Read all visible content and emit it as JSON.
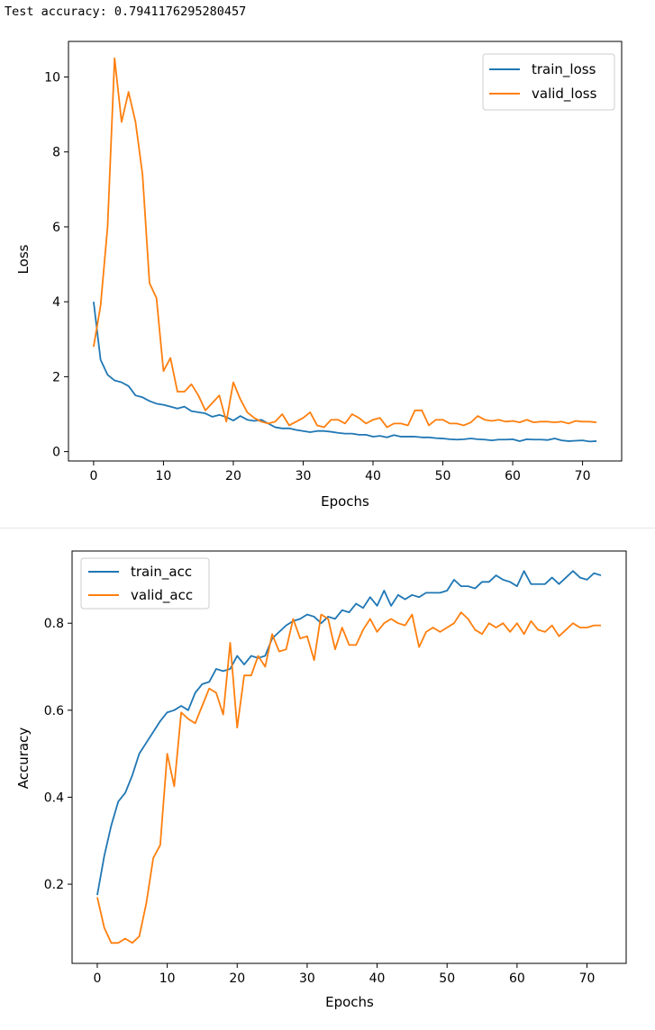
{
  "output": {
    "test_accuracy_line": "Test accuracy: 0.7941176295280457"
  },
  "colors": {
    "train": "#1f77b4",
    "valid": "#ff7f0e",
    "axis": "#000000"
  },
  "chart_data": [
    {
      "type": "line",
      "xlabel": "Epochs",
      "ylabel": "Loss",
      "xlim": [
        -3.6,
        75.6
      ],
      "ylim": [
        -0.25,
        10.95
      ],
      "xticks": [
        0,
        10,
        20,
        30,
        40,
        50,
        60,
        70
      ],
      "yticks": [
        0,
        2,
        4,
        6,
        8,
        10
      ],
      "legend": "top-right",
      "x": [
        0,
        1,
        2,
        3,
        4,
        5,
        6,
        7,
        8,
        9,
        10,
        11,
        12,
        13,
        14,
        15,
        16,
        17,
        18,
        19,
        20,
        21,
        22,
        23,
        24,
        25,
        26,
        27,
        28,
        29,
        30,
        31,
        32,
        33,
        34,
        35,
        36,
        37,
        38,
        39,
        40,
        41,
        42,
        43,
        44,
        45,
        46,
        47,
        48,
        49,
        50,
        51,
        52,
        53,
        54,
        55,
        56,
        57,
        58,
        59,
        60,
        61,
        62,
        63,
        64,
        65,
        66,
        67,
        68,
        69,
        70,
        71,
        72
      ],
      "series": [
        {
          "name": "train_loss",
          "values": [
            4.0,
            2.45,
            2.05,
            1.9,
            1.85,
            1.75,
            1.5,
            1.45,
            1.35,
            1.28,
            1.25,
            1.2,
            1.15,
            1.2,
            1.08,
            1.05,
            1.02,
            0.93,
            0.98,
            0.92,
            0.83,
            0.95,
            0.85,
            0.82,
            0.85,
            0.75,
            0.65,
            0.62,
            0.62,
            0.58,
            0.55,
            0.52,
            0.55,
            0.55,
            0.53,
            0.5,
            0.48,
            0.48,
            0.45,
            0.45,
            0.4,
            0.42,
            0.38,
            0.44,
            0.4,
            0.4,
            0.4,
            0.38,
            0.38,
            0.36,
            0.35,
            0.33,
            0.32,
            0.33,
            0.35,
            0.33,
            0.32,
            0.3,
            0.32,
            0.32,
            0.33,
            0.28,
            0.33,
            0.32,
            0.32,
            0.31,
            0.35,
            0.3,
            0.28,
            0.29,
            0.3,
            0.27,
            0.28
          ]
        },
        {
          "name": "valid_loss",
          "values": [
            2.8,
            3.9,
            6.0,
            10.5,
            8.8,
            9.6,
            8.8,
            7.4,
            4.5,
            4.1,
            2.15,
            2.5,
            1.6,
            1.6,
            1.8,
            1.5,
            1.1,
            1.3,
            1.5,
            0.8,
            1.85,
            1.4,
            1.05,
            0.9,
            0.8,
            0.75,
            0.8,
            1.0,
            0.7,
            0.8,
            0.9,
            1.05,
            0.7,
            0.65,
            0.85,
            0.85,
            0.75,
            1.0,
            0.9,
            0.75,
            0.85,
            0.9,
            0.65,
            0.75,
            0.75,
            0.7,
            1.1,
            1.1,
            0.7,
            0.85,
            0.85,
            0.75,
            0.75,
            0.7,
            0.78,
            0.95,
            0.85,
            0.82,
            0.85,
            0.8,
            0.82,
            0.78,
            0.85,
            0.78,
            0.8,
            0.8,
            0.78,
            0.8,
            0.75,
            0.82,
            0.8,
            0.8,
            0.78
          ]
        }
      ]
    },
    {
      "type": "line",
      "xlabel": "Epochs",
      "ylabel": "Accuracy",
      "xlim": [
        -3.6,
        75.6
      ],
      "ylim": [
        0.018,
        0.966
      ],
      "xticks": [
        0,
        10,
        20,
        30,
        40,
        50,
        60,
        70
      ],
      "yticks": [
        0.2,
        0.4,
        0.6,
        0.8
      ],
      "legend": "top-left",
      "x": [
        0,
        1,
        2,
        3,
        4,
        5,
        6,
        7,
        8,
        9,
        10,
        11,
        12,
        13,
        14,
        15,
        16,
        17,
        18,
        19,
        20,
        21,
        22,
        23,
        24,
        25,
        26,
        27,
        28,
        29,
        30,
        31,
        32,
        33,
        34,
        35,
        36,
        37,
        38,
        39,
        40,
        41,
        42,
        43,
        44,
        45,
        46,
        47,
        48,
        49,
        50,
        51,
        52,
        53,
        54,
        55,
        56,
        57,
        58,
        59,
        60,
        61,
        62,
        63,
        64,
        65,
        66,
        67,
        68,
        69,
        70,
        71,
        72
      ],
      "series": [
        {
          "name": "train_acc",
          "values": [
            0.175,
            0.265,
            0.335,
            0.39,
            0.41,
            0.45,
            0.5,
            0.525,
            0.55,
            0.575,
            0.595,
            0.6,
            0.61,
            0.6,
            0.64,
            0.66,
            0.665,
            0.695,
            0.69,
            0.695,
            0.725,
            0.705,
            0.725,
            0.72,
            0.725,
            0.765,
            0.78,
            0.795,
            0.805,
            0.81,
            0.82,
            0.815,
            0.8,
            0.815,
            0.81,
            0.83,
            0.825,
            0.845,
            0.835,
            0.86,
            0.84,
            0.875,
            0.84,
            0.865,
            0.855,
            0.865,
            0.86,
            0.87,
            0.87,
            0.87,
            0.875,
            0.9,
            0.885,
            0.885,
            0.88,
            0.895,
            0.895,
            0.91,
            0.9,
            0.895,
            0.885,
            0.92,
            0.89,
            0.89,
            0.89,
            0.905,
            0.89,
            0.905,
            0.92,
            0.905,
            0.9,
            0.915,
            0.91
          ]
        },
        {
          "name": "valid_acc",
          "values": [
            0.17,
            0.1,
            0.065,
            0.065,
            0.075,
            0.065,
            0.08,
            0.155,
            0.26,
            0.29,
            0.5,
            0.425,
            0.595,
            0.58,
            0.57,
            0.61,
            0.65,
            0.64,
            0.59,
            0.755,
            0.56,
            0.68,
            0.68,
            0.725,
            0.7,
            0.775,
            0.735,
            0.74,
            0.81,
            0.765,
            0.77,
            0.715,
            0.82,
            0.81,
            0.74,
            0.79,
            0.75,
            0.75,
            0.785,
            0.81,
            0.78,
            0.8,
            0.81,
            0.8,
            0.795,
            0.82,
            0.745,
            0.78,
            0.79,
            0.78,
            0.79,
            0.8,
            0.825,
            0.81,
            0.785,
            0.775,
            0.8,
            0.79,
            0.8,
            0.78,
            0.8,
            0.775,
            0.805,
            0.785,
            0.78,
            0.795,
            0.77,
            0.785,
            0.8,
            0.79,
            0.79,
            0.795,
            0.795
          ]
        }
      ]
    }
  ]
}
